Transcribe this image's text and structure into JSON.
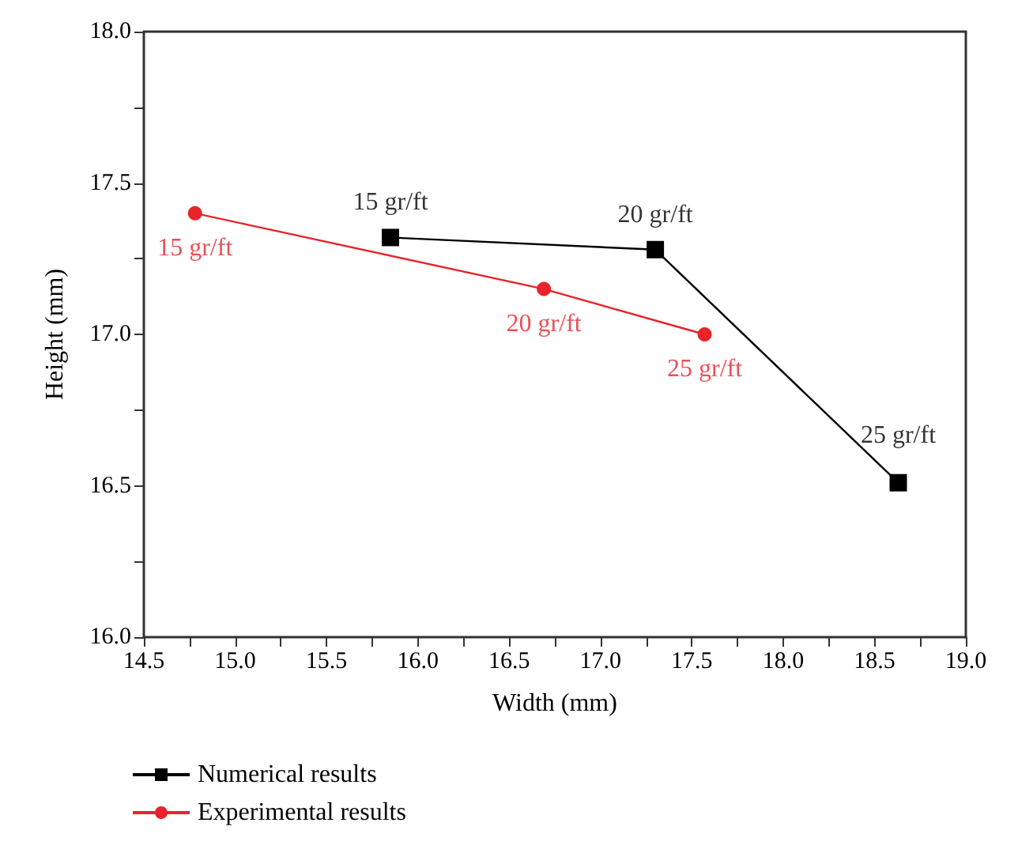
{
  "chart_data": {
    "type": "line",
    "xlabel": "Width (mm)",
    "ylabel": "Height (mm)",
    "xlim": [
      14.5,
      19.0
    ],
    "xticks": [
      {
        "value": 14.5,
        "label": "14.5"
      },
      {
        "value": 15,
        "label": "15.0"
      },
      {
        "value": 15.5,
        "label": "15.5"
      },
      {
        "value": 16,
        "label": "16.0"
      },
      {
        "value": 16.5,
        "label": "16.5"
      },
      {
        "value": 17,
        "label": "17.0"
      },
      {
        "value": 17.5,
        "label": "17.5"
      },
      {
        "value": 18,
        "label": "18.0"
      },
      {
        "value": 18.5,
        "label": "18.5"
      },
      {
        "value": 19,
        "label": "19.0"
      }
    ],
    "ylim": [
      16.0,
      18.0
    ],
    "yticks": [
      {
        "value": 16,
        "label": "16.0"
      },
      {
        "value": 16.5,
        "label": "16.5"
      },
      {
        "value": 17,
        "label": "17.0"
      },
      {
        "value": 17.5,
        "label": "17.5"
      },
      {
        "value": 18,
        "label": "18.0"
      }
    ],
    "grid": false,
    "legend": "bottom",
    "line_style": "solid",
    "series": [
      {
        "name": "Numerical results",
        "color": "#000000",
        "marker": "square",
        "x": [
          15.85,
          17.3,
          18.63
        ],
        "values": [
          17.32,
          17.28,
          16.51
        ]
      },
      {
        "name": "Experimental results",
        "color": "#e8232a",
        "marker": "circle",
        "x": [
          14.78,
          16.69,
          17.57
        ],
        "values": [
          17.4,
          17.15,
          17.0
        ]
      }
    ],
    "annotations": [
      {
        "text": "15 gr/ft",
        "x": 15.85,
        "y": 17.32
      },
      {
        "text": "20 gr/ft",
        "x": 17.3,
        "y": 17.28
      },
      {
        "text": "25 gr/ft",
        "x": 18.63,
        "y": 16.51
      },
      {
        "text": "15 gr/ft",
        "x": 14.78,
        "y": 17.4
      },
      {
        "text": "20 gr/ft",
        "x": 16.69,
        "y": 17.15
      },
      {
        "text": "25 gr/ft",
        "x": 17.57,
        "y": 17.0
      }
    ]
  }
}
